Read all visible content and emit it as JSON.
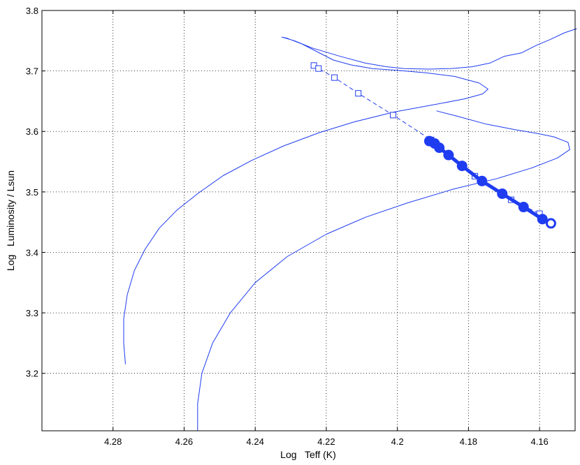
{
  "chart_data": {
    "type": "line",
    "xlabel": "Log   Teff (K)",
    "ylabel": "Log   Luminosity / Lsun",
    "x_reversed": true,
    "xlim": [
      4.15,
      4.3
    ],
    "ylim": [
      3.105,
      3.8
    ],
    "grid": true,
    "x_ticks": [
      4.28,
      4.26,
      4.24,
      4.22,
      4.2,
      4.18,
      4.16
    ],
    "x_tick_labels": [
      "4.28",
      "4.26",
      "4.24",
      "4.22",
      "4.2",
      "4.18",
      "4.16"
    ],
    "y_ticks": [
      3.2,
      3.3,
      3.4,
      3.5,
      3.6,
      3.7,
      3.8
    ],
    "y_tick_labels": [
      "3.2",
      "3.3",
      "3.4",
      "3.5",
      "3.6",
      "3.7",
      "3.8"
    ],
    "color": "#1f3cf0",
    "series": [
      {
        "style": "thin-line",
        "points": [
          [
            4.2765,
            3.215
          ],
          [
            4.277,
            3.25
          ],
          [
            4.277,
            3.29
          ],
          [
            4.276,
            3.33
          ],
          [
            4.274,
            3.37
          ],
          [
            4.271,
            3.405
          ],
          [
            4.267,
            3.44
          ],
          [
            4.262,
            3.47
          ],
          [
            4.256,
            3.498
          ],
          [
            4.249,
            3.527
          ],
          [
            4.241,
            3.552
          ],
          [
            4.232,
            3.576
          ],
          [
            4.222,
            3.598
          ],
          [
            4.212,
            3.616
          ],
          [
            4.201,
            3.632
          ],
          [
            4.189,
            3.645
          ],
          [
            4.181,
            3.654
          ],
          [
            4.176,
            3.662
          ],
          [
            4.1745,
            3.67
          ],
          [
            4.177,
            3.68
          ],
          [
            4.184,
            3.691
          ],
          [
            4.192,
            3.697
          ],
          [
            4.2,
            3.701
          ],
          [
            4.207,
            3.704
          ],
          [
            4.213,
            3.71
          ],
          [
            4.218,
            3.718
          ],
          [
            4.223,
            3.733
          ],
          [
            4.227,
            3.745
          ],
          [
            4.231,
            3.754
          ],
          [
            4.2325,
            3.756
          ],
          [
            4.229,
            3.75
          ],
          [
            4.224,
            3.738
          ],
          [
            4.216,
            3.724
          ],
          [
            4.209,
            3.713
          ],
          [
            4.203,
            3.707
          ],
          [
            4.198,
            3.704
          ],
          [
            4.191,
            3.703
          ],
          [
            4.185,
            3.704
          ],
          [
            4.179,
            3.707
          ],
          [
            4.174,
            3.713
          ],
          [
            4.17,
            3.724
          ],
          [
            4.165,
            3.73
          ],
          [
            4.161,
            3.742
          ],
          [
            4.157,
            3.752
          ],
          [
            4.153,
            3.763
          ],
          [
            4.1495,
            3.77
          ]
        ]
      },
      {
        "style": "thin-line",
        "points": [
          [
            4.2562,
            3.105
          ],
          [
            4.2562,
            3.15
          ],
          [
            4.255,
            3.2
          ],
          [
            4.252,
            3.25
          ],
          [
            4.247,
            3.3
          ],
          [
            4.24,
            3.35
          ],
          [
            4.231,
            3.393
          ],
          [
            4.22,
            3.43
          ],
          [
            4.209,
            3.458
          ],
          [
            4.197,
            3.482
          ],
          [
            4.184,
            3.505
          ],
          [
            4.172,
            3.522
          ],
          [
            4.162,
            3.54
          ],
          [
            4.155,
            3.556
          ],
          [
            4.1515,
            3.57
          ],
          [
            4.152,
            3.582
          ],
          [
            4.156,
            3.591
          ],
          [
            4.161,
            3.597
          ],
          [
            4.167,
            3.603
          ],
          [
            4.175,
            3.612
          ],
          [
            4.183,
            3.625
          ],
          [
            4.189,
            3.634
          ]
        ]
      },
      {
        "style": "dashed-squares",
        "points": [
          [
            4.2235,
            3.709
          ],
          [
            4.2222,
            3.704
          ],
          [
            4.2177,
            3.689
          ],
          [
            4.211,
            3.663
          ],
          [
            4.2012,
            3.627
          ],
          [
            4.1905,
            3.586
          ],
          [
            4.1782,
            3.526
          ],
          [
            4.168,
            3.487
          ],
          [
            4.16,
            3.464
          ]
        ]
      },
      {
        "style": "thick-circles",
        "points": [
          [
            4.191,
            3.584
          ],
          [
            4.1895,
            3.58
          ],
          [
            4.1882,
            3.573
          ],
          [
            4.1856,
            3.561
          ],
          [
            4.1818,
            3.543
          ],
          [
            4.1762,
            3.518
          ],
          [
            4.1705,
            3.497
          ],
          [
            4.1645,
            3.475
          ],
          [
            4.1592,
            3.455
          ],
          [
            4.1568,
            3.448
          ]
        ]
      }
    ]
  }
}
